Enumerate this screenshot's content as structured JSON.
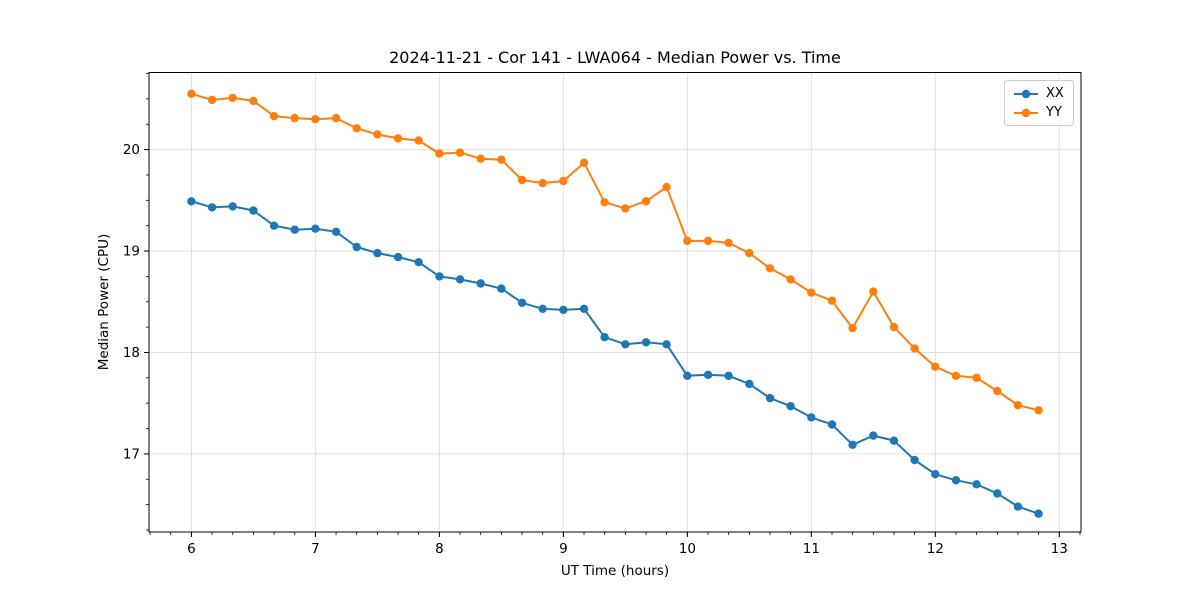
{
  "title": "2024-11-21 - Cor 141 - LWA064 - Median Power vs. Time",
  "chart_data": {
    "type": "line",
    "title": "2024-11-21 - Cor 141 - LWA064 - Median Power vs. Time",
    "xlabel": "UT Time (hours)",
    "ylabel": "Median Power (CPU)",
    "xlim": [
      5.658,
      13.175
    ],
    "ylim": [
      16.23,
      20.76
    ],
    "xticks": [
      6,
      7,
      8,
      9,
      10,
      11,
      12,
      13
    ],
    "yticks": [
      17,
      18,
      19,
      20
    ],
    "x_minor_per_unit": 6,
    "y_minor_per_unit": 4,
    "grid": true,
    "grid_color": "#e0e0e0",
    "legend_position": "upper right",
    "x": [
      6.0,
      6.167,
      6.333,
      6.5,
      6.667,
      6.833,
      7.0,
      7.167,
      7.333,
      7.5,
      7.667,
      7.833,
      8.0,
      8.167,
      8.333,
      8.5,
      8.667,
      8.833,
      9.0,
      9.167,
      9.333,
      9.5,
      9.667,
      9.833,
      10.0,
      10.167,
      10.333,
      10.5,
      10.667,
      10.833,
      11.0,
      11.167,
      11.333,
      11.5,
      11.667,
      11.833,
      12.0,
      12.167,
      12.333,
      12.5,
      12.667,
      12.833
    ],
    "series": [
      {
        "name": "XX",
        "color": "#1f77b4",
        "values": [
          19.49,
          19.43,
          19.44,
          19.4,
          19.25,
          19.21,
          19.22,
          19.19,
          19.04,
          18.98,
          18.94,
          18.89,
          18.75,
          18.72,
          18.68,
          18.63,
          18.49,
          18.43,
          18.42,
          18.43,
          18.15,
          18.08,
          18.1,
          18.08,
          17.77,
          17.78,
          17.77,
          17.69,
          17.55,
          17.47,
          17.36,
          17.29,
          17.09,
          17.18,
          17.13,
          16.94,
          16.8,
          16.74,
          16.7,
          16.61,
          16.48,
          16.41
        ]
      },
      {
        "name": "YY",
        "color": "#ff7f0e",
        "values": [
          20.55,
          20.49,
          20.51,
          20.48,
          20.33,
          20.31,
          20.3,
          20.31,
          20.21,
          20.15,
          20.11,
          20.09,
          19.96,
          19.97,
          19.91,
          19.9,
          19.7,
          19.67,
          19.69,
          19.87,
          19.48,
          19.42,
          19.49,
          19.63,
          19.1,
          19.1,
          19.08,
          18.98,
          18.83,
          18.72,
          18.59,
          18.51,
          18.24,
          18.6,
          18.25,
          18.04,
          17.86,
          17.77,
          17.75,
          17.62,
          17.48,
          17.43
        ]
      }
    ]
  }
}
